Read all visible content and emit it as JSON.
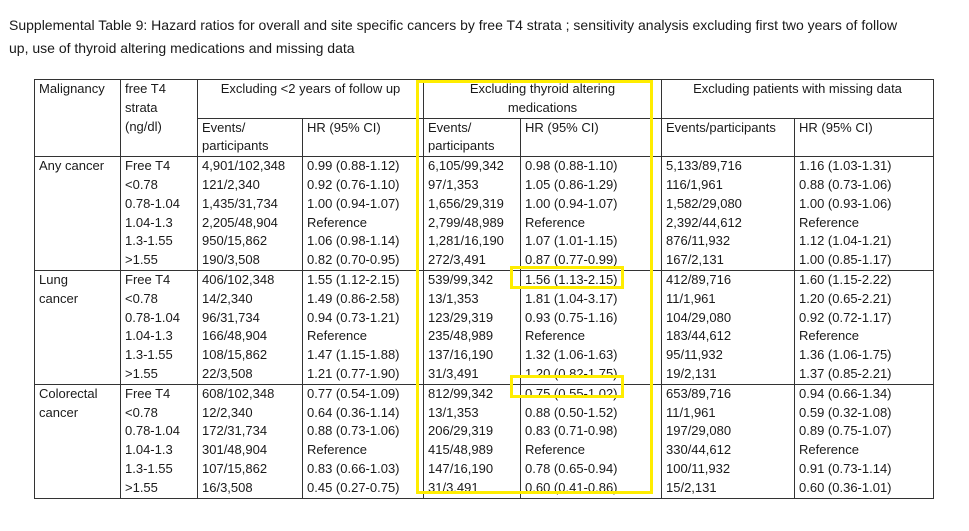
{
  "caption": {
    "line1": "Supplemental Table 9: Hazard ratios for overall and site specific cancers by free T4 strata ; sensitivity analysis excluding first two years of follow",
    "line2": "up, use of thyroid altering medications and missing data"
  },
  "header": {
    "malignancy": "Malignancy",
    "strata": [
      "free T4",
      "strata",
      "(ng/dl)"
    ],
    "group1": "Excluding <2 years of follow up",
    "group2": [
      "Excluding thyroid altering",
      "medications"
    ],
    "group3": "Excluding patients with missing data",
    "events_g1": "Events/",
    "participants_g1": "participants",
    "hr_g1": "HR (95% CI)",
    "events_g2": "Events/",
    "participants_g2": "participants",
    "hr_g2": "HR (95% CI)",
    "events_g3": "Events/participants",
    "hr_g3": "HR (95% CI)"
  },
  "groups": [
    {
      "name": [
        "Any cancer"
      ],
      "rows": [
        [
          "Free T4",
          "4,901/102,348",
          "0.99 (0.88-1.12)",
          "6,105/99,342",
          "0.98 (0.88-1.10)",
          "5,133/89,716",
          "1.16 (1.03-1.31)"
        ],
        [
          "<0.78",
          "121/2,340",
          "0.92 (0.76-1.10)",
          "97/1,353",
          "1.05 (0.86-1.29)",
          "116/1,961",
          "0.88 (0.73-1.06)"
        ],
        [
          "0.78-1.04",
          "1,435/31,734",
          "1.00 (0.94-1.07)",
          "1,656/29,319",
          "1.00 (0.94-1.07)",
          "1,582/29,080",
          "1.00 (0.93-1.06)"
        ],
        [
          "1.04-1.3",
          "2,205/48,904",
          "Reference",
          "2,799/48,989",
          "Reference",
          "2,392/44,612",
          "Reference"
        ],
        [
          "1.3-1.55",
          "950/15,862",
          "1.06 (0.98-1.14)",
          "1,281/16,190",
          "1.07 (1.01-1.15)",
          "876/11,932",
          "1.12 (1.04-1.21)"
        ],
        [
          ">1.55",
          "190/3,508",
          "0.82 (0.70-0.95)",
          "272/3,491",
          "0.87 (0.77-0.99)",
          "167/2,131",
          "1.00 (0.85-1.17)"
        ]
      ]
    },
    {
      "name": [
        "Lung",
        "cancer"
      ],
      "rows": [
        [
          "Free T4",
          "406/102,348",
          "1.55 (1.12-2.15)",
          "539/99,342",
          "1.56 (1.13-2.15)",
          "412/89,716",
          "1.60 (1.15-2.22)"
        ],
        [
          "<0.78",
          "14/2,340",
          "1.49 (0.86-2.58)",
          "13/1,353",
          "1.81 (1.04-3.17)",
          "11/1,961",
          "1.20 (0.65-2.21)"
        ],
        [
          "0.78-1.04",
          "96/31,734",
          "0.94 (0.73-1.21)",
          "123/29,319",
          "0.93 (0.75-1.16)",
          "104/29,080",
          "0.92 (0.72-1.17)"
        ],
        [
          "1.04-1.3",
          "166/48,904",
          "Reference",
          "235/48,989",
          "Reference",
          "183/44,612",
          "Reference"
        ],
        [
          "1.3-1.55",
          "108/15,862",
          "1.47 (1.15-1.88)",
          "137/16,190",
          "1.32 (1.06-1.63)",
          "95/11,932",
          "1.36 (1.06-1.75)"
        ],
        [
          ">1.55",
          "22/3,508",
          "1.21 (0.77-1.90)",
          "31/3,491",
          "1.20 (0.82-1.75)",
          "19/2,131",
          "1.37 (0.85-2.21)"
        ]
      ]
    },
    {
      "name": [
        "Colorectal",
        "cancer"
      ],
      "rows": [
        [
          "Free T4",
          "608/102,348",
          "0.77 (0.54-1.09)",
          "812/99,342",
          "0.75 (0.55-1.02)",
          "653/89,716",
          "0.94 (0.66-1.34)"
        ],
        [
          "<0.78",
          "12/2,340",
          "0.64 (0.36-1.14)",
          "13/1,353",
          "0.88 (0.50-1.52)",
          "11/1,961",
          "0.59 (0.32-1.08)"
        ],
        [
          "0.78-1.04",
          "172/31,734",
          "0.88 (0.73-1.06)",
          "206/29,319",
          "0.83 (0.71-0.98)",
          "197/29,080",
          "0.89 (0.75-1.07)"
        ],
        [
          "1.04-1.3",
          "301/48,904",
          "Reference",
          "415/48,989",
          "Reference",
          "330/44,612",
          "Reference"
        ],
        [
          "1.3-1.55",
          "107/15,862",
          "0.83 (0.66-1.03)",
          "147/16,190",
          "0.78 (0.65-0.94)",
          "100/11,932",
          "0.91 (0.73-1.14)"
        ],
        [
          ">1.55",
          "16/3,508",
          "0.45 (0.27-0.75)",
          "31/3,491",
          "0.60 (0.41-0.86)",
          "15/2,131",
          "0.60 (0.36-1.01)"
        ]
      ]
    }
  ],
  "highlight_color": "#ffed00"
}
